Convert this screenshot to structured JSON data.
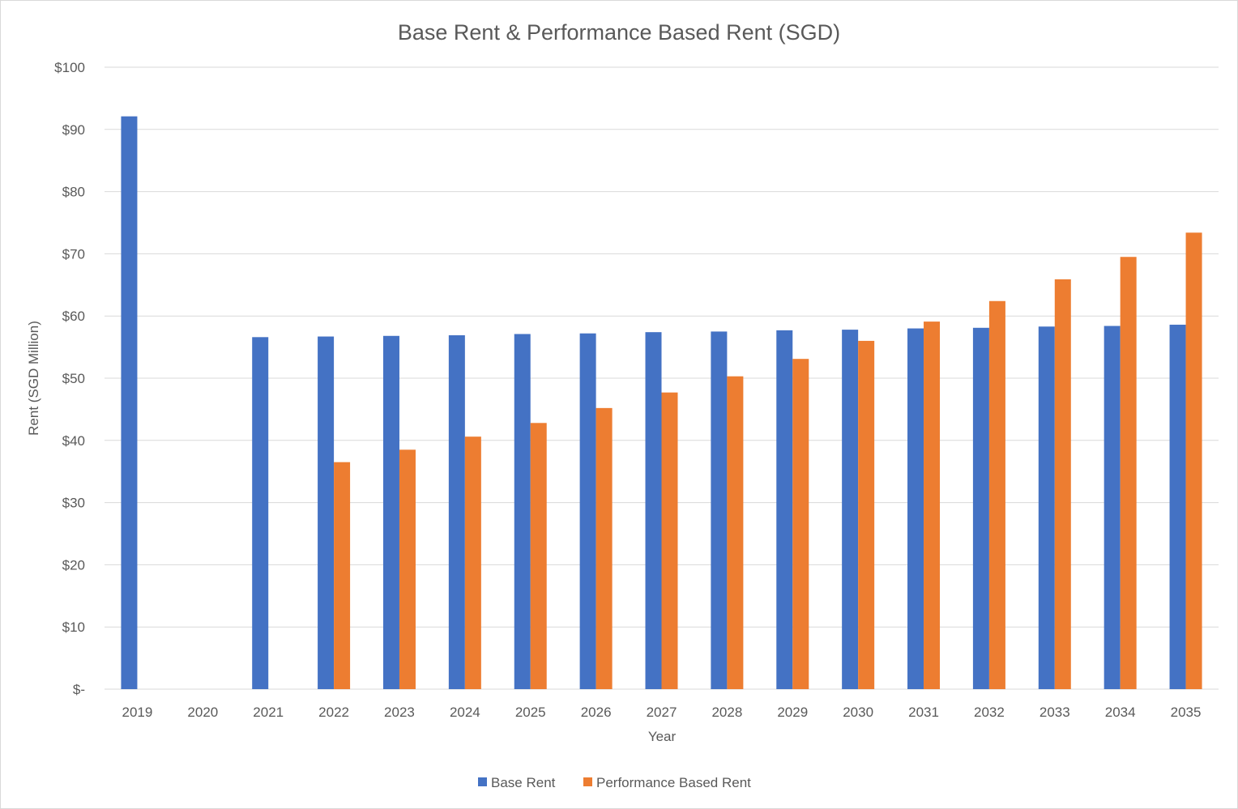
{
  "chart_data": {
    "type": "bar",
    "title": "Base Rent & Performance Based Rent (SGD)",
    "xlabel": "Year",
    "ylabel": "Rent (SGD Million)",
    "ylim": [
      0,
      100
    ],
    "yticks": [
      0,
      10,
      20,
      30,
      40,
      50,
      60,
      70,
      80,
      90,
      100
    ],
    "ytick_labels": [
      "$-",
      "$10",
      "$20",
      "$30",
      "$40",
      "$50",
      "$60",
      "$70",
      "$80",
      "$90",
      "$100"
    ],
    "grid": true,
    "legend_position": "bottom",
    "categories": [
      "2019",
      "2020",
      "2021",
      "2022",
      "2023",
      "2024",
      "2025",
      "2026",
      "2027",
      "2028",
      "2029",
      "2030",
      "2031",
      "2032",
      "2033",
      "2034",
      "2035"
    ],
    "series": [
      {
        "name": "Base Rent",
        "color": "#4472c4",
        "values": [
          92.1,
          0,
          56.6,
          56.7,
          56.8,
          56.9,
          57.1,
          57.2,
          57.4,
          57.5,
          57.7,
          57.8,
          58.0,
          58.1,
          58.3,
          58.4,
          58.6
        ]
      },
      {
        "name": "Performance Based Rent",
        "color": "#ed7d31",
        "values": [
          0,
          0,
          0,
          36.5,
          38.5,
          40.6,
          42.8,
          45.2,
          47.7,
          50.3,
          53.1,
          56.0,
          59.1,
          62.4,
          65.9,
          69.5,
          73.4
        ]
      }
    ]
  }
}
